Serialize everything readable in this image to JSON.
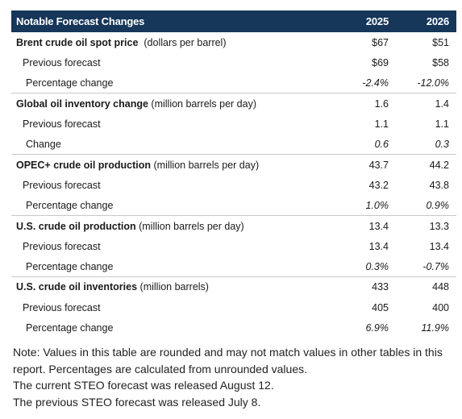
{
  "table": {
    "header": {
      "label": "Notable Forecast Changes",
      "year1": "2025",
      "year2": "2026"
    },
    "groups": [
      {
        "title": "Brent crude oil spot price",
        "unit": "(dollars per barrel)",
        "values": [
          "$67",
          "$51"
        ],
        "rows": [
          {
            "label": "Previous forecast",
            "values": [
              "$69",
              "$58"
            ]
          },
          {
            "label": "Percentage change",
            "values": [
              "-2.4%",
              "-12.0%"
            ]
          }
        ]
      },
      {
        "title": "Global oil inventory change",
        "unit": "(million barrels per day)",
        "values": [
          "1.6",
          "1.4"
        ],
        "rows": [
          {
            "label": "Previous forecast",
            "values": [
              "1.1",
              "1.1"
            ]
          },
          {
            "label": "Change",
            "values": [
              "0.6",
              "0.3"
            ]
          }
        ]
      },
      {
        "title": "OPEC+ crude oil production",
        "unit": "(million barrels per day)",
        "values": [
          "43.7",
          "44.2"
        ],
        "rows": [
          {
            "label": "Previous forecast",
            "values": [
              "43.2",
              "43.8"
            ]
          },
          {
            "label": "Percentage change",
            "values": [
              "1.0%",
              "0.9%"
            ]
          }
        ]
      },
      {
        "title": "U.S. crude oil production",
        "unit": "(million barrels per day)",
        "values": [
          "13.4",
          "13.3"
        ],
        "rows": [
          {
            "label": "Previous forecast",
            "values": [
              "13.4",
              "13.4"
            ]
          },
          {
            "label": "Percentage change",
            "values": [
              "0.3%",
              "-0.7%"
            ]
          }
        ]
      },
      {
        "title": "U.S. crude oil inventories",
        "unit": "(million barrels)",
        "values": [
          "433",
          "448"
        ],
        "rows": [
          {
            "label": "Previous forecast",
            "values": [
              "405",
              "400"
            ]
          },
          {
            "label": "Percentage change",
            "values": [
              "6.9%",
              "11.9%"
            ]
          }
        ]
      }
    ]
  },
  "note": {
    "line1": "Note: Values in this table are rounded and may not match values in other tables in this report. Percentages are calculated from unrounded values.",
    "line2": "The current STEO forecast was released August 12.",
    "line3": "The previous STEO forecast was released July 8."
  },
  "colors": {
    "header_bg": "#16365a",
    "header_text": "#ffffff",
    "row_divider": "#c9c9c9"
  }
}
